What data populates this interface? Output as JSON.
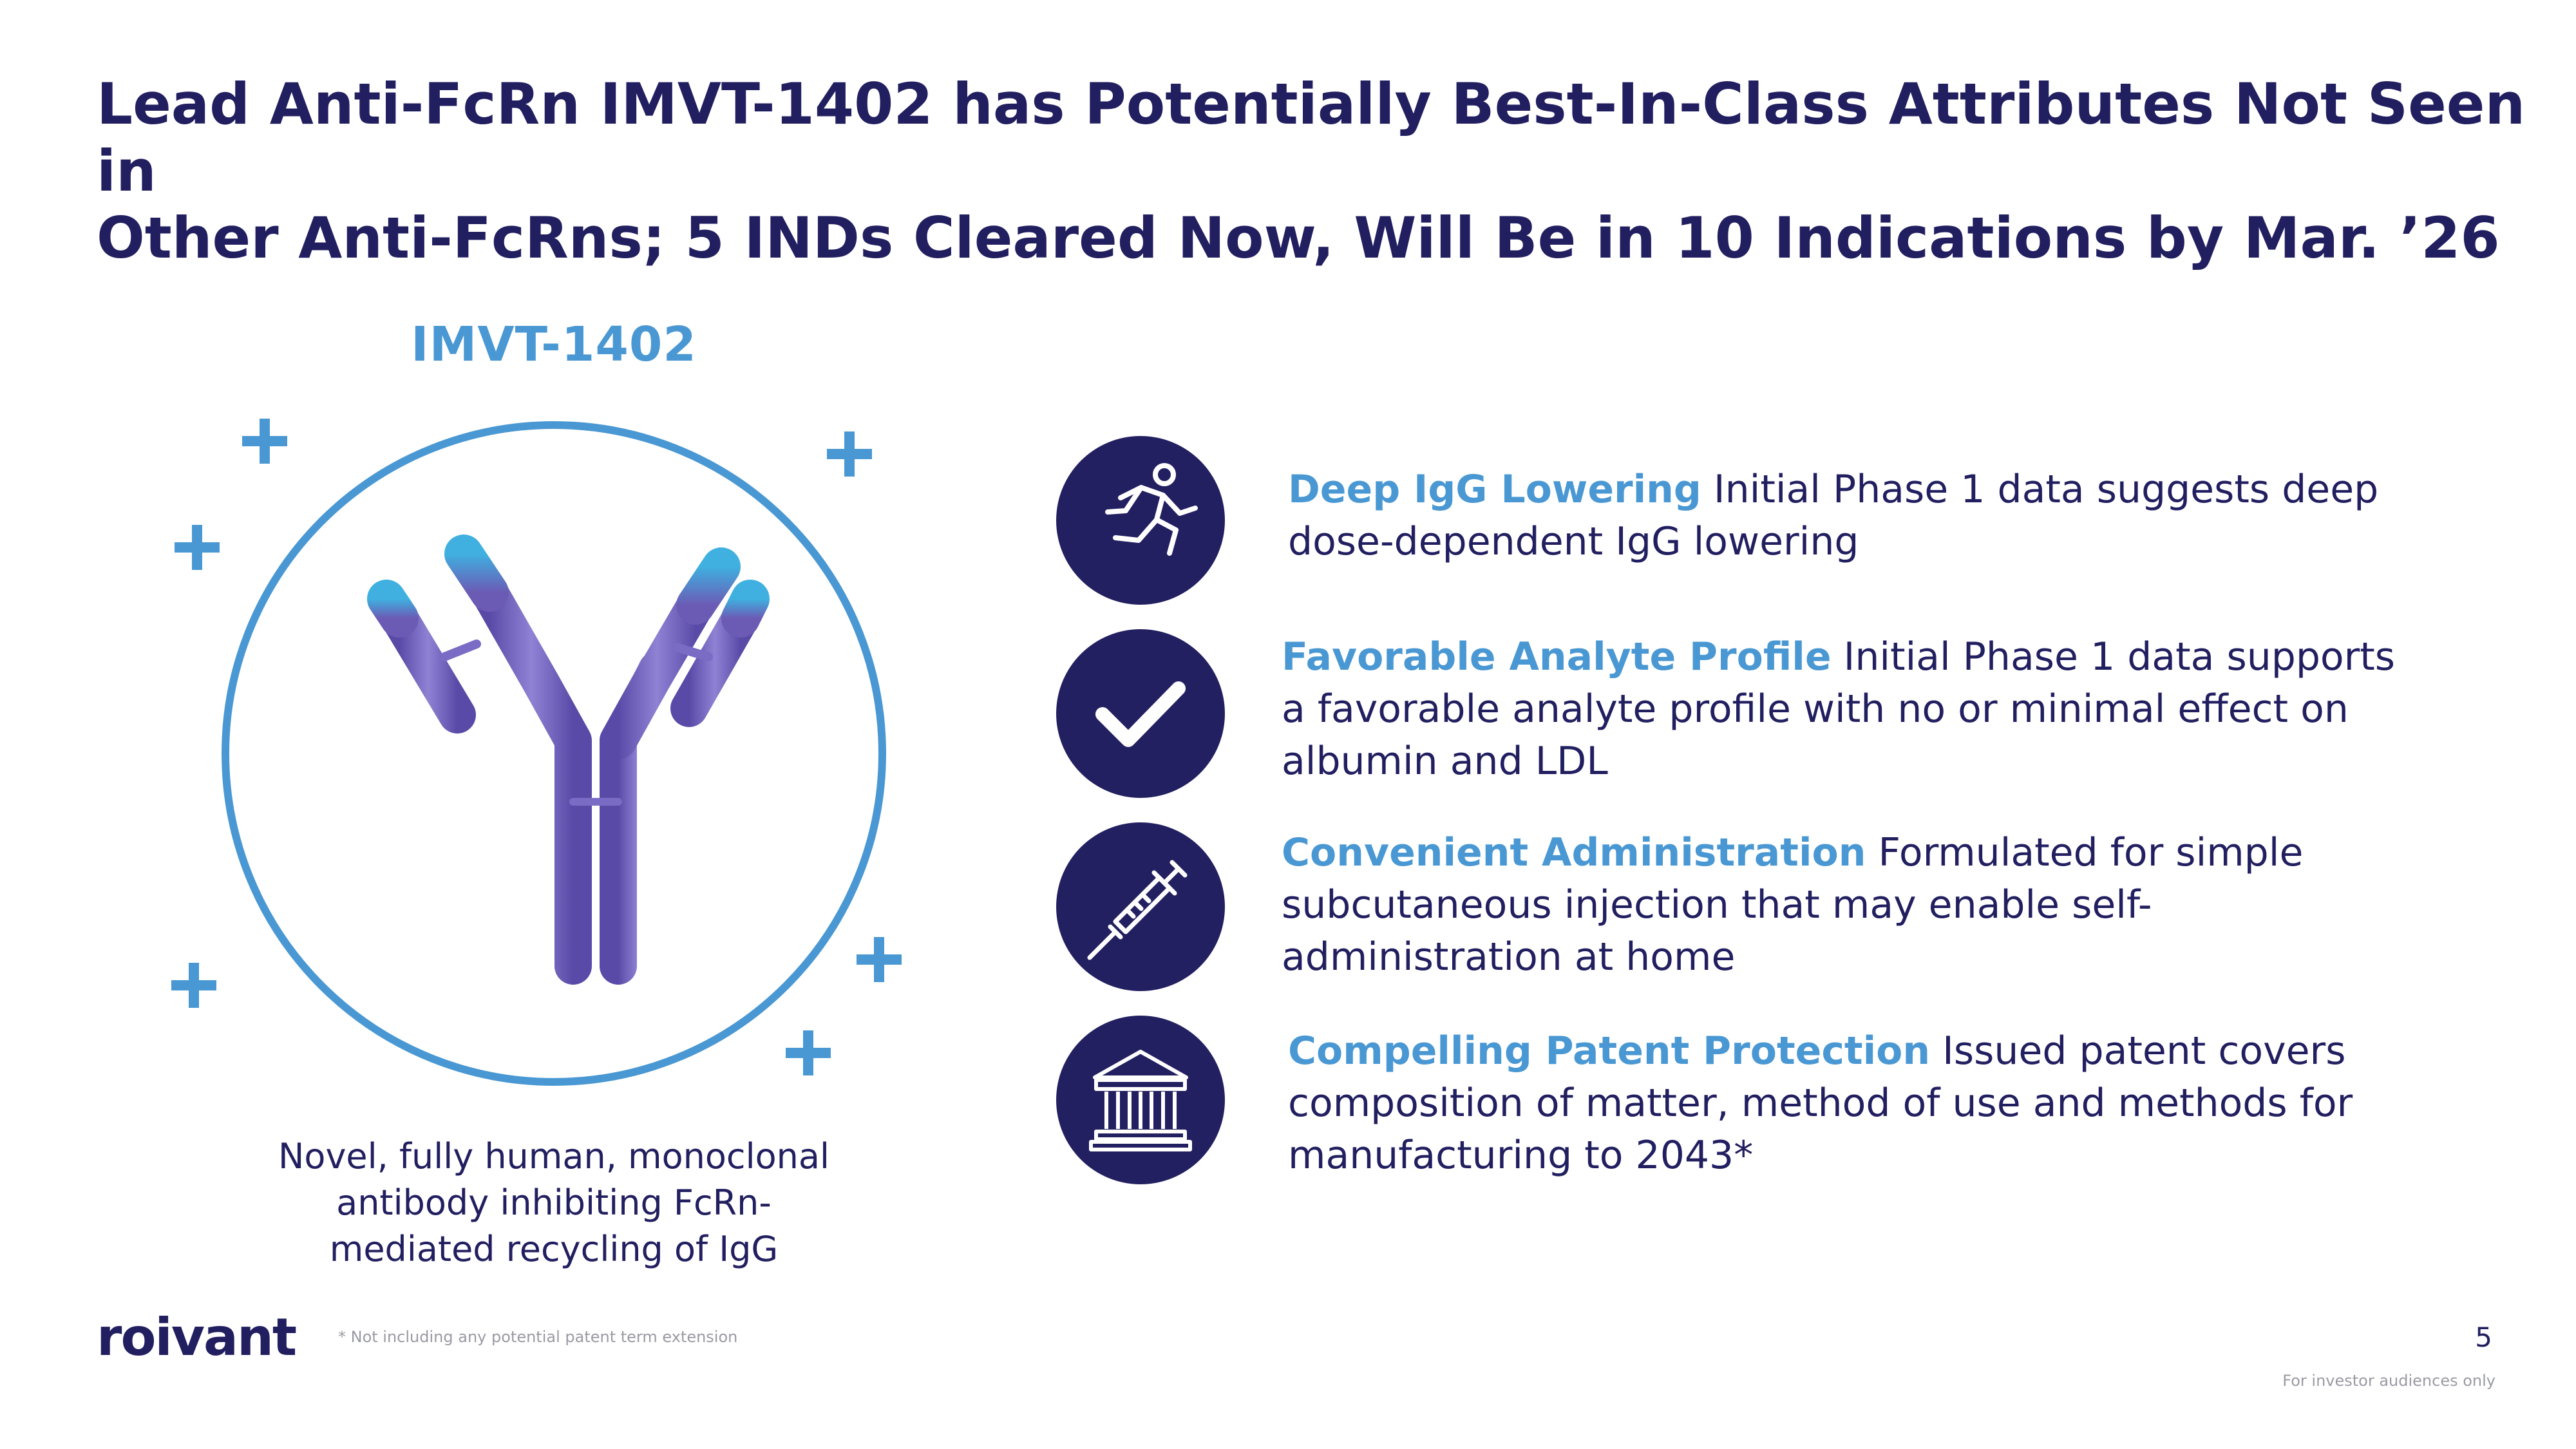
{
  "slide": {
    "title_lines": [
      "Lead Anti-FcRn IMVT-1402 has Potentially Best-In-Class Attributes Not Seen in",
      "Other Anti-FcRns; 5 INDs Cleared Now, Will Be in 10 Indications by Mar. ’26"
    ],
    "page_number": "5",
    "audience_note": "For investor audiences only",
    "footnote": "* Not including any potential patent term extension",
    "logo_text": "roivant"
  },
  "hero": {
    "drug_name": "IMVT-1402",
    "caption_lines": [
      "Novel, fully human, monoclonal",
      "antibody inhibiting FcRn-",
      "mediated recycling of IgG"
    ]
  },
  "features": [
    {
      "icon": "running-person-icon",
      "heading": "Deep IgG Lowering",
      "lines": [
        "Initial Phase 1 data suggests deep",
        "dose-dependent IgG lowering"
      ]
    },
    {
      "icon": "checkmark-icon",
      "heading": "Favorable Analyte Profile",
      "lines": [
        "Initial Phase 1 data supports",
        "a favorable analyte profile with no or minimal effect on",
        "albumin and LDL"
      ]
    },
    {
      "icon": "syringe-icon",
      "heading": "Convenient Administration",
      "lines": [
        "Formulated for simple",
        "subcutaneous injection that may enable self-",
        "administration at home"
      ]
    },
    {
      "icon": "bank-building-icon",
      "heading": "Compelling Patent Protection",
      "lines": [
        "Issued patent covers",
        "composition of matter, method of use and methods for",
        "manufacturing to 2043*"
      ]
    }
  ],
  "colors": {
    "navy": "#221f60",
    "accent_blue": "#4a98d3",
    "antibody_purple": "#6b5bb5",
    "antibody_tip": "#3fb0e0"
  }
}
